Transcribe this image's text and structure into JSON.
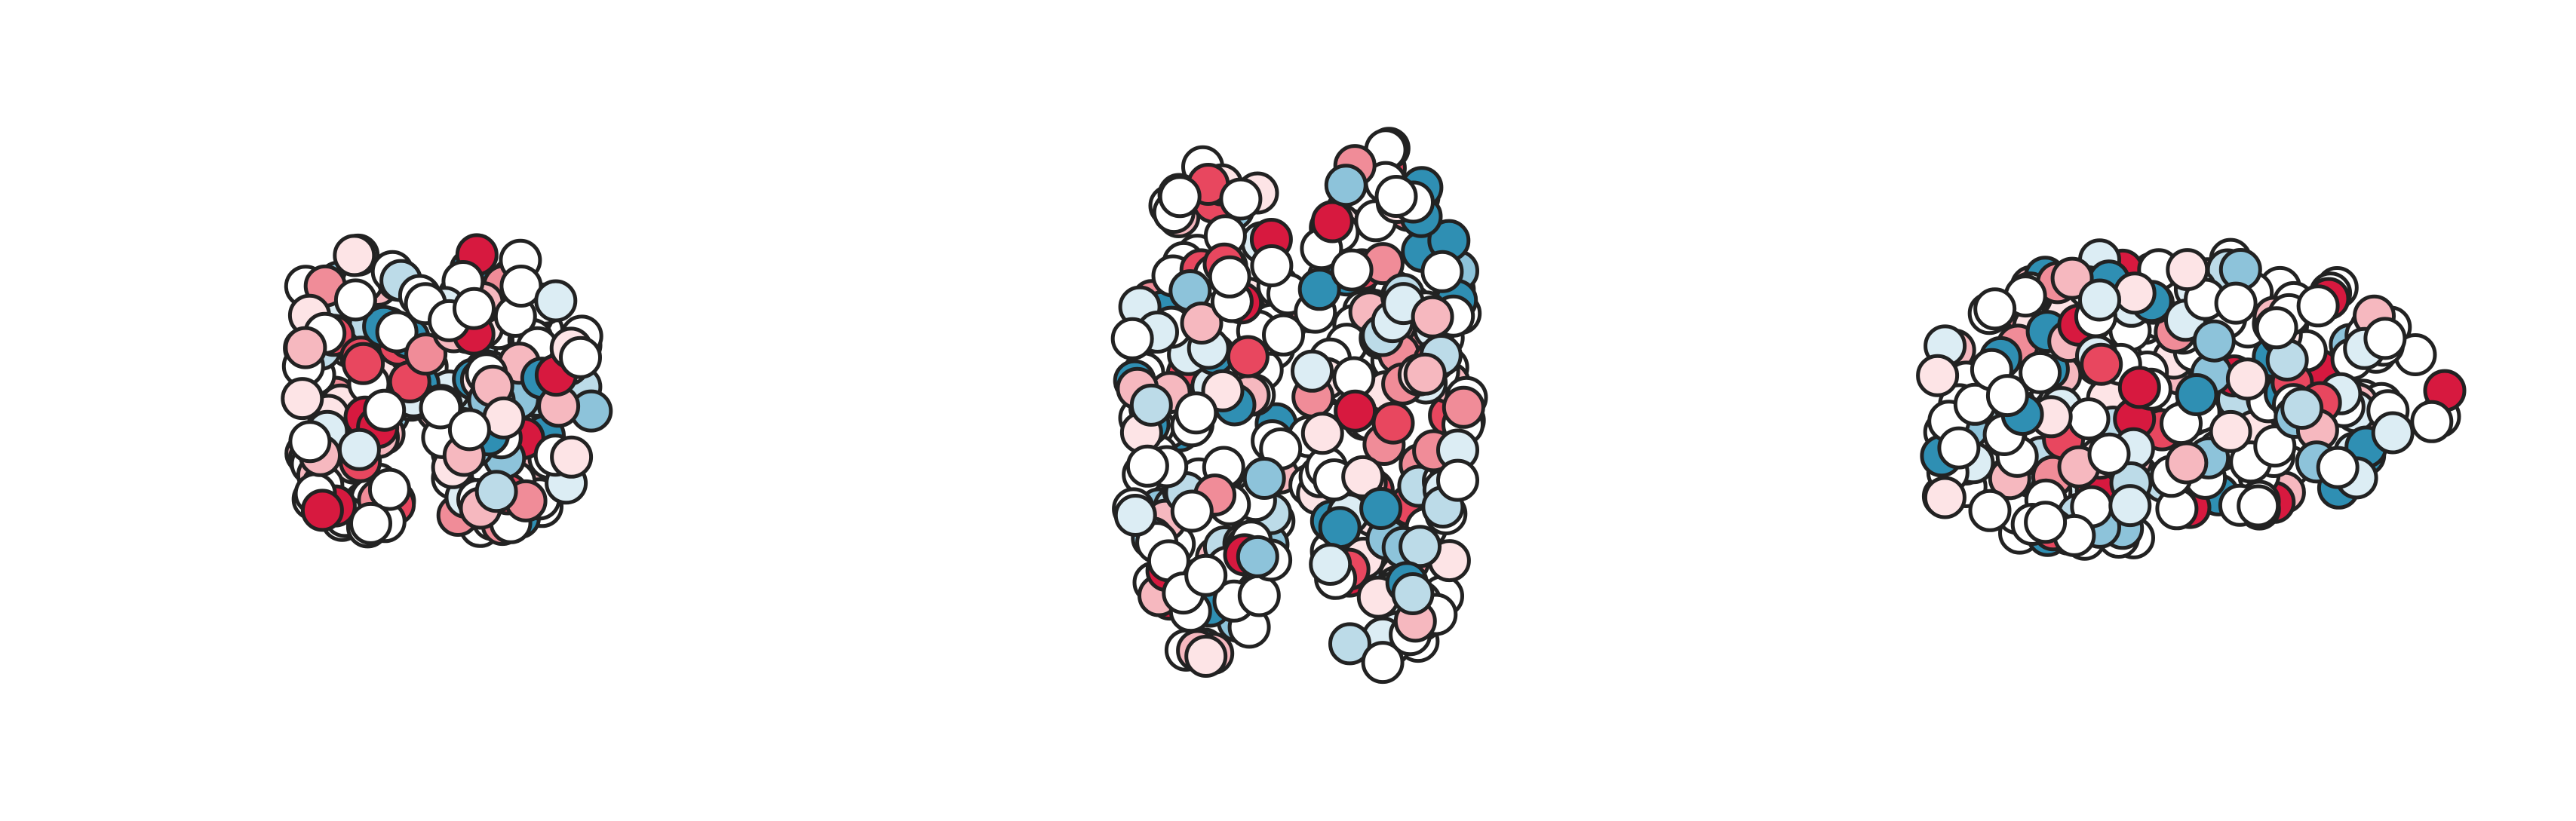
{
  "node_colors": [
    "#d7193f",
    "#e8475f",
    "#f08c98",
    "#f6b8bf",
    "#fde4e6",
    "#ffffff",
    "#dcedf4",
    "#bcdbe8",
    "#8dc3da",
    "#2f8fb3"
  ]
}
